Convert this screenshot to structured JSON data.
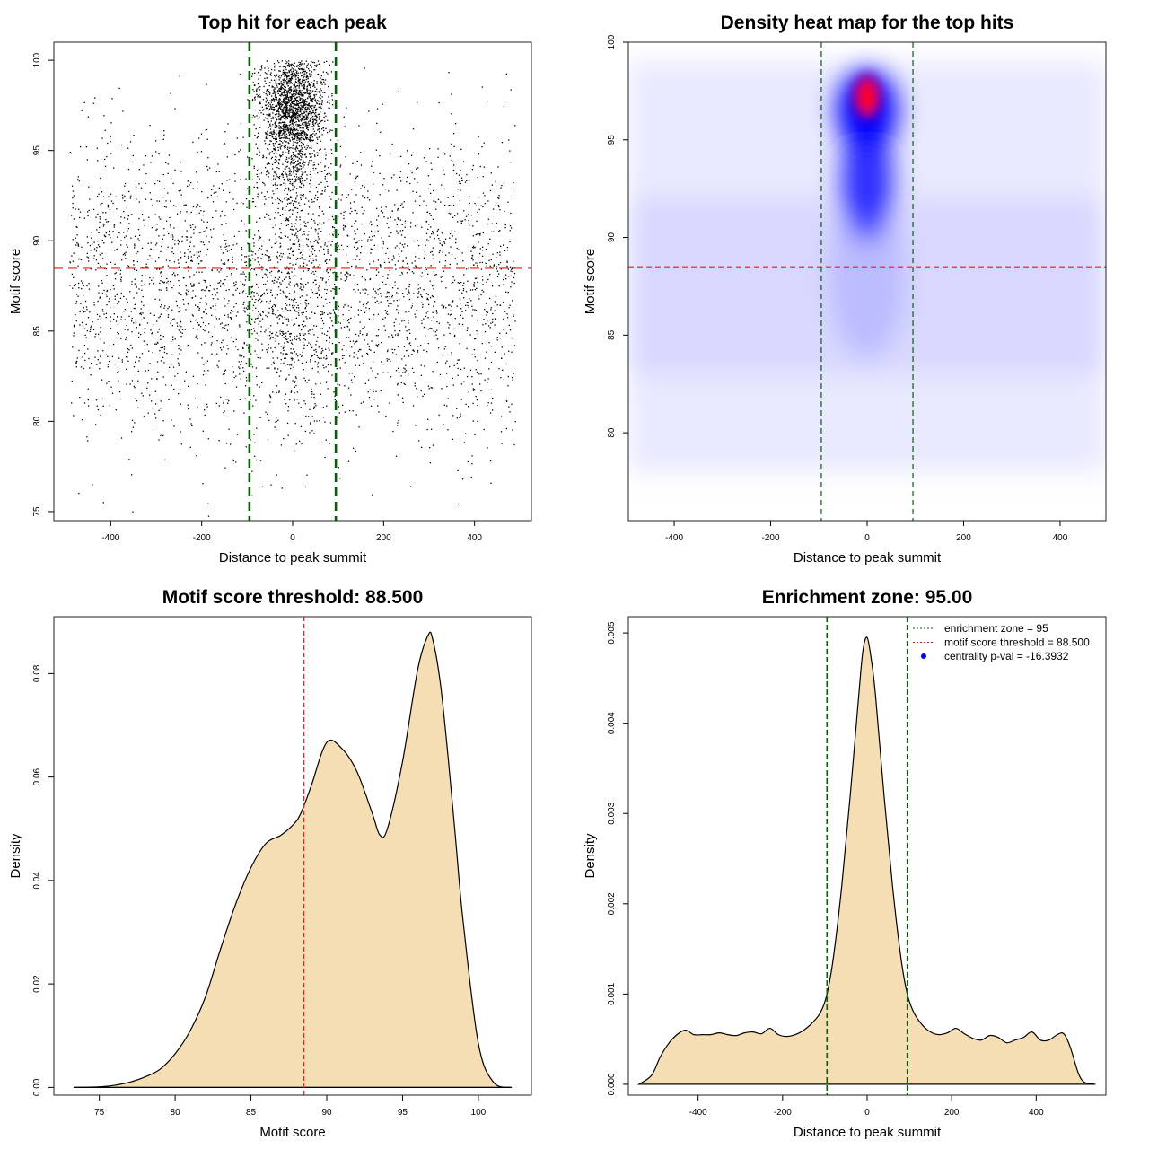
{
  "chart_data": [
    {
      "type": "scatter",
      "title": "Top hit for each peak",
      "xlabel": "Distance to peak summit",
      "ylabel": "Motif score",
      "xlim": [
        -525,
        525
      ],
      "ylim": [
        74.5,
        101
      ],
      "xticks": [
        "-400",
        "-200",
        "0",
        "200",
        "400"
      ],
      "xtick_values": [
        -400,
        -200,
        0,
        200,
        400
      ],
      "yticks": [
        "75",
        "80",
        "85",
        "90",
        "95",
        "100"
      ],
      "ytick_values": [
        75,
        80,
        85,
        90,
        95,
        100
      ],
      "hlines": [
        {
          "value": 88.5,
          "color": "#e41a1c"
        }
      ],
      "vlines": [
        {
          "value": -95,
          "color": "#006400"
        },
        {
          "value": 95,
          "color": "#006400"
        }
      ],
      "background": {
        "x_range": [
          -490,
          490
        ],
        "y_mean": 87.6,
        "y_sd": 4.2,
        "count": 3200
      },
      "cluster": {
        "x_range": [
          -90,
          90
        ],
        "x_sd": 35,
        "y_mean": 95.6,
        "y_sd": 2.6,
        "count": 2200
      },
      "mid_cluster": {
        "x_sd": 60,
        "y_mean": 86.5,
        "y_sd": 3.2,
        "count": 450
      },
      "point_color": "#000000"
    },
    {
      "type": "heatmap",
      "title": "Density heat map for the top hits",
      "xlabel": "Distance to peak summit",
      "ylabel": "Motif score",
      "xlim": [
        -495,
        495
      ],
      "ylim": [
        75.5,
        100
      ],
      "xticks": [
        "-400",
        "-200",
        "0",
        "200",
        "400"
      ],
      "xtick_values": [
        -400,
        -200,
        0,
        200,
        400
      ],
      "yticks": [
        "80",
        "85",
        "90",
        "95",
        "100"
      ],
      "ytick_values": [
        80,
        85,
        90,
        95,
        100
      ],
      "hlines": [
        {
          "value": 88.5,
          "color": "#e41a1c"
        }
      ],
      "vlines": [
        {
          "value": -95,
          "color": "#006400"
        },
        {
          "value": 95,
          "color": "#006400"
        }
      ],
      "hotspot": {
        "x": 0,
        "y": 97.2,
        "x_sd": 20,
        "y_sd": 1.6
      },
      "colors": {
        "low": "#ffffff",
        "mid": "#0000ff",
        "high": "#ff0000"
      }
    },
    {
      "type": "area",
      "title": "Motif score threshold: 88.500",
      "xlabel": "Motif score",
      "ylabel": "Density",
      "xlim": [
        72,
        103.5
      ],
      "ylim": [
        -0.0015,
        0.091
      ],
      "xticks": [
        "75",
        "80",
        "85",
        "90",
        "95",
        "100"
      ],
      "xtick_values": [
        75,
        80,
        85,
        90,
        95,
        100
      ],
      "yticks": [
        "0.00",
        "0.02",
        "0.04",
        "0.06",
        "0.08"
      ],
      "ytick_values": [
        0,
        0.02,
        0.04,
        0.06,
        0.08
      ],
      "x": [
        73.3,
        75,
        76,
        77,
        78,
        79,
        80,
        81,
        82,
        83,
        84,
        85,
        86,
        87,
        88,
        88.5,
        89,
        90,
        91,
        92,
        93,
        93.5,
        94,
        95,
        96,
        96.7,
        97,
        97.5,
        98,
        98.5,
        99,
        100,
        101,
        102.2
      ],
      "y": [
        0,
        0.0001,
        0.0004,
        0.001,
        0.002,
        0.0035,
        0.0065,
        0.011,
        0.0175,
        0.0268,
        0.0355,
        0.0425,
        0.0472,
        0.0488,
        0.0515,
        0.0545,
        0.0585,
        0.0667,
        0.0655,
        0.061,
        0.053,
        0.0488,
        0.05,
        0.063,
        0.0808,
        0.0875,
        0.0865,
        0.078,
        0.064,
        0.048,
        0.032,
        0.0085,
        0.001,
        0
      ],
      "vlines": [
        {
          "value": 88.5,
          "color": "#e41a1c"
        }
      ],
      "fill": "#f5deb3"
    },
    {
      "type": "area",
      "title": "Enrichment zone: 95.00",
      "xlabel": "Distance to peak summit",
      "ylabel": "Density",
      "xlim": [
        -565,
        565
      ],
      "ylim": [
        -0.00012,
        0.00518
      ],
      "xticks": [
        "-400",
        "-200",
        "0",
        "200",
        "400"
      ],
      "xtick_values": [
        -400,
        -200,
        0,
        200,
        400
      ],
      "yticks": [
        "0.000",
        "0.001",
        "0.002",
        "0.003",
        "0.004",
        "0.005"
      ],
      "ytick_values": [
        0,
        0.001,
        0.002,
        0.003,
        0.004,
        0.005
      ],
      "x": [
        -540,
        -510,
        -490,
        -470,
        -450,
        -430,
        -410,
        -390,
        -370,
        -350,
        -330,
        -310,
        -290,
        -270,
        -250,
        -230,
        -210,
        -190,
        -170,
        -150,
        -130,
        -110,
        -95,
        -80,
        -60,
        -40,
        -20,
        -10,
        0,
        10,
        20,
        40,
        60,
        80,
        95,
        110,
        130,
        150,
        170,
        190,
        210,
        230,
        250,
        270,
        290,
        310,
        330,
        350,
        370,
        390,
        410,
        430,
        450,
        465,
        480,
        500,
        515,
        540
      ],
      "y": [
        0,
        0.0001,
        0.0003,
        0.00045,
        0.00055,
        0.0006,
        0.00055,
        0.00055,
        0.00055,
        0.00057,
        0.00055,
        0.00054,
        0.00057,
        0.00058,
        0.00056,
        0.00062,
        0.00055,
        0.00053,
        0.00055,
        0.0006,
        0.00068,
        0.0008,
        0.001,
        0.0014,
        0.0022,
        0.0032,
        0.0043,
        0.0048,
        0.00495,
        0.0047,
        0.0043,
        0.0032,
        0.0022,
        0.0014,
        0.001,
        0.0008,
        0.00066,
        0.00058,
        0.00055,
        0.00057,
        0.00062,
        0.00056,
        0.00051,
        0.00049,
        0.00054,
        0.00052,
        0.00046,
        0.00049,
        0.00052,
        0.00058,
        0.00049,
        0.00049,
        0.00055,
        0.00056,
        0.00042,
        0.00012,
        2e-05,
        0
      ],
      "vlines": [
        {
          "value": -95,
          "color": "#006400"
        },
        {
          "value": 95,
          "color": "#006400"
        }
      ],
      "fill": "#f5deb3",
      "legend": {
        "position": "top-right",
        "entries": [
          {
            "label": "enrichment zone = 95",
            "color": "#006400",
            "kind": "dotted-line"
          },
          {
            "label": "motif score threshold = 88.500",
            "color": "#e41a1c",
            "kind": "dotted-line"
          },
          {
            "label": "centrality p-val = -16.3932",
            "color": "#0000ff",
            "kind": "point"
          }
        ]
      }
    }
  ]
}
